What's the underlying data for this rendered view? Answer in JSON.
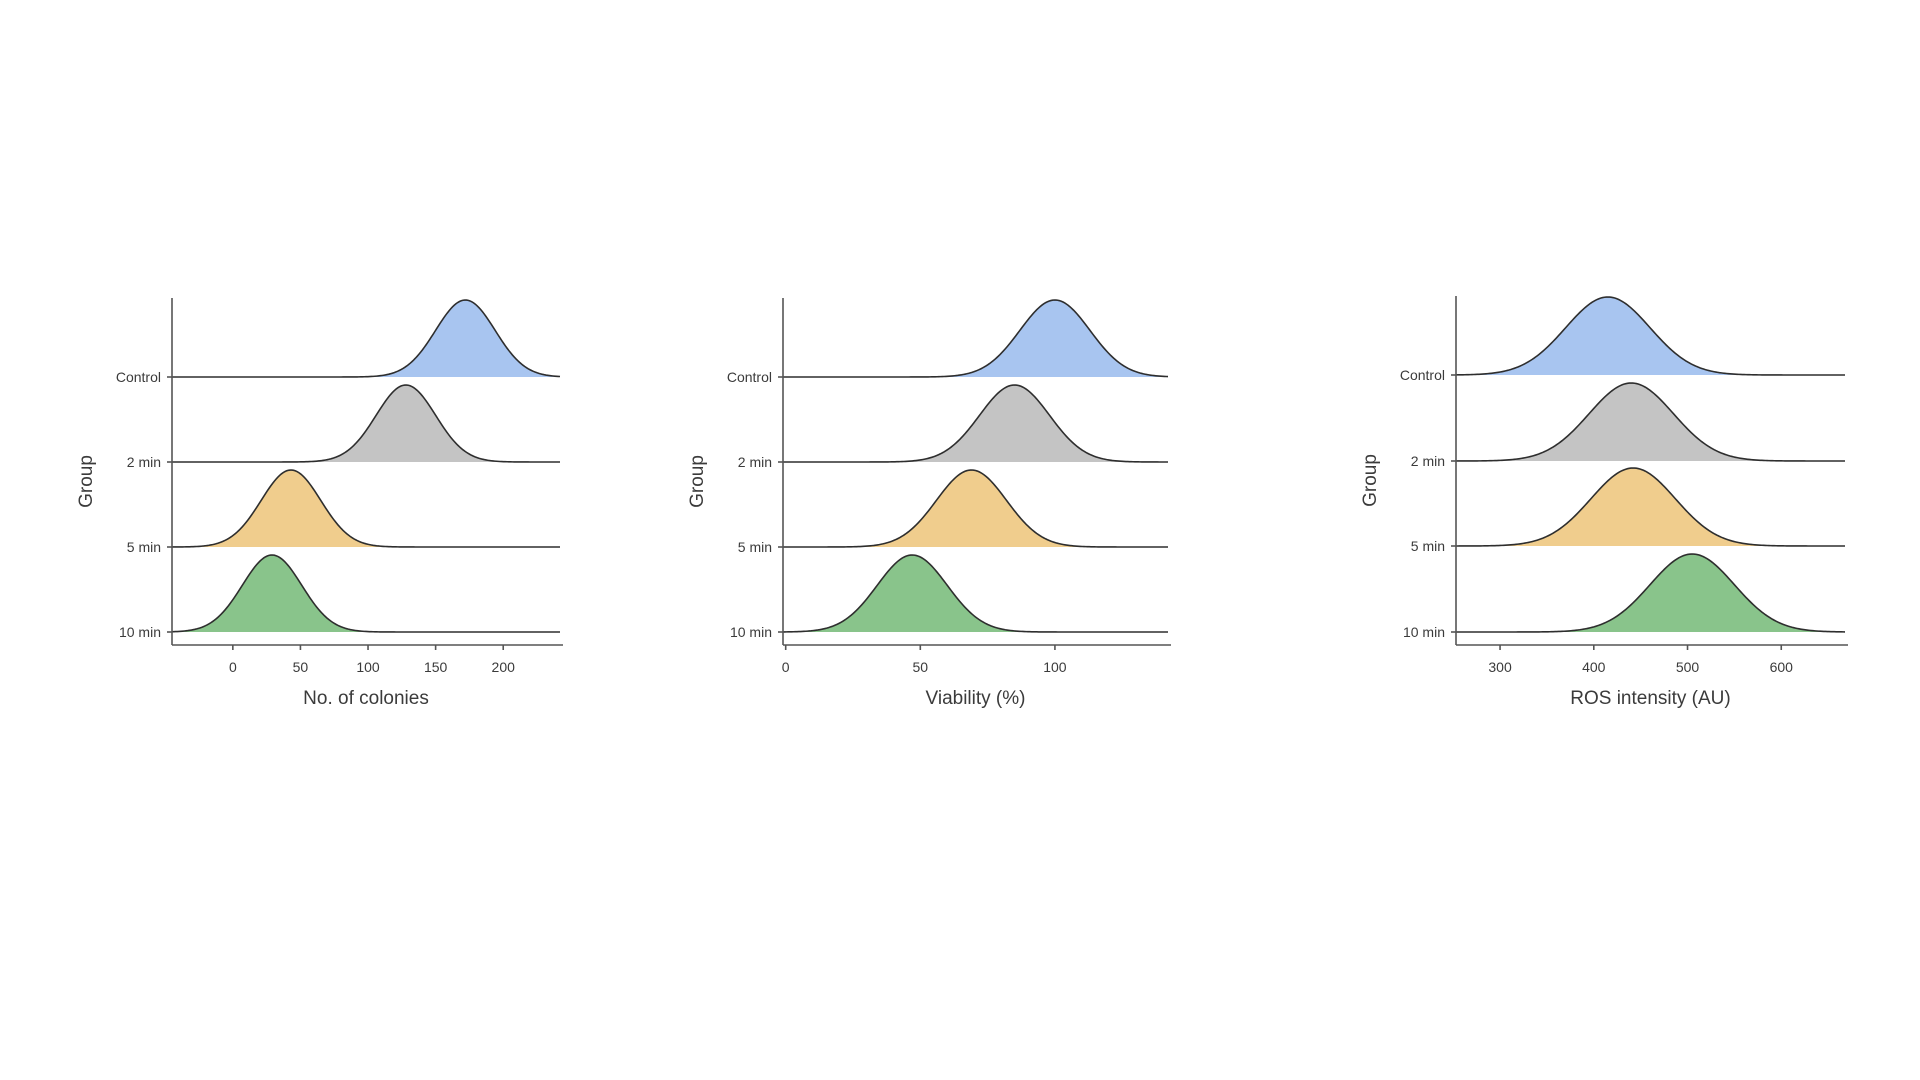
{
  "chart_data": [
    {
      "type": "ridgeline",
      "xlabel": "No. of colonies",
      "ylabel": "Group",
      "xlim": [
        -45,
        242
      ],
      "xticks": [
        0,
        50,
        100,
        150,
        200
      ],
      "series": [
        {
          "name": "Control",
          "mean": 172,
          "sd": 22,
          "color": "#a8c5f0"
        },
        {
          "name": "2 min",
          "mean": 128,
          "sd": 22,
          "color": "#c4c4c4"
        },
        {
          "name": "5 min",
          "mean": 43,
          "sd": 22,
          "color": "#f0cd8d"
        },
        {
          "name": "10 min",
          "mean": 29,
          "sd": 22,
          "color": "#89c48b"
        }
      ]
    },
    {
      "type": "ridgeline",
      "xlabel": "Viability (%)",
      "ylabel": "Group",
      "xlim": [
        -1,
        142
      ],
      "xticks": [
        0,
        50,
        100
      ],
      "series": [
        {
          "name": "Control",
          "mean": 100,
          "sd": 13,
          "color": "#a8c5f0"
        },
        {
          "name": "2 min",
          "mean": 85,
          "sd": 13,
          "color": "#c4c4c4"
        },
        {
          "name": "5 min",
          "mean": 69,
          "sd": 13,
          "color": "#f0cd8d"
        },
        {
          "name": "10 min",
          "mean": 47,
          "sd": 13,
          "color": "#89c48b"
        }
      ]
    },
    {
      "type": "ridgeline",
      "xlabel": "ROS intensity (AU)",
      "ylabel": "Group",
      "xlim": [
        253,
        668
      ],
      "xticks": [
        300,
        400,
        500,
        600
      ],
      "series": [
        {
          "name": "Control",
          "mean": 415,
          "sd": 45,
          "color": "#a8c5f0"
        },
        {
          "name": "2 min",
          "mean": 440,
          "sd": 45,
          "color": "#c4c4c4"
        },
        {
          "name": "5 min",
          "mean": 442,
          "sd": 45,
          "color": "#f0cd8d"
        },
        {
          "name": "10 min",
          "mean": 505,
          "sd": 45,
          "color": "#89c48b"
        }
      ]
    }
  ]
}
